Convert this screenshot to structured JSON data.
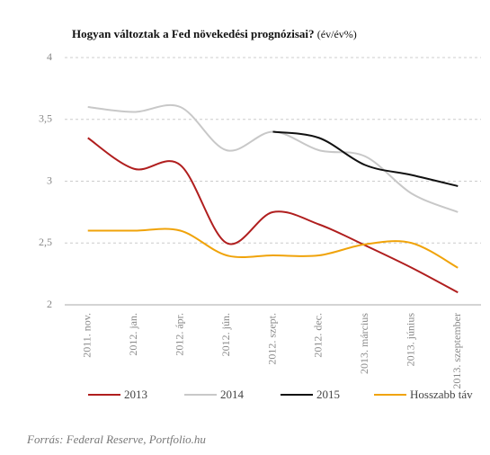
{
  "chart_data": {
    "type": "line",
    "title": "Hogyan változtak a Fed növekedési prognózisai?",
    "title_unit": "(év/év%)",
    "source": "Forrás: Federal Reserve, Portfolio.hu",
    "categories": [
      "2011. nov.",
      "2012. jan.",
      "2012. ápr.",
      "2012. jún.",
      "2012. szept.",
      "2012. dec.",
      "2013. március",
      "2013. június",
      "2013. szeptember"
    ],
    "series": [
      {
        "name": "2013",
        "color": "#b01e1e",
        "values": [
          3.35,
          3.1,
          3.13,
          2.5,
          2.75,
          2.65,
          2.48,
          2.3,
          2.1
        ]
      },
      {
        "name": "2014",
        "color": "#c8c8c8",
        "values": [
          3.6,
          3.56,
          3.6,
          3.25,
          3.4,
          3.25,
          3.2,
          2.9,
          2.75
        ]
      },
      {
        "name": "2015",
        "color": "#111111",
        "values": [
          null,
          null,
          null,
          null,
          3.4,
          3.35,
          3.13,
          3.05,
          2.96
        ]
      },
      {
        "name": "Hosszabb táv",
        "color": "#f0a30a",
        "values": [
          2.6,
          2.6,
          2.6,
          2.4,
          2.4,
          2.4,
          2.49,
          2.5,
          2.3
        ]
      }
    ],
    "ylim": [
      2,
      4
    ],
    "yticks": [
      2,
      {
        "value": 2.5,
        "label": "2,5"
      },
      3,
      {
        "value": 3.5,
        "label": "3,5"
      },
      4
    ],
    "grid": true
  }
}
